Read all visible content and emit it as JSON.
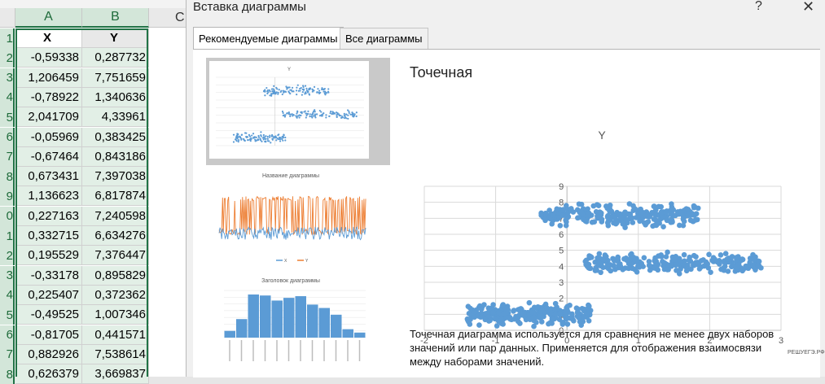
{
  "sheet": {
    "columns": [
      "A",
      "B",
      "C"
    ],
    "row_numbers": [
      "1",
      "2",
      "3",
      "4",
      "5",
      "6",
      "7",
      "8",
      "9",
      "0",
      "1",
      "2",
      "3",
      "4",
      "5",
      "6",
      "7",
      "8"
    ],
    "headers": [
      "X",
      "Y"
    ],
    "rows": [
      [
        "-0,59338",
        "0,287732"
      ],
      [
        "1,206459",
        "7,751659"
      ],
      [
        "-0,78922",
        "1,340636"
      ],
      [
        "2,041709",
        "4,33961"
      ],
      [
        "-0,05969",
        "0,383425"
      ],
      [
        "-0,67464",
        "0,843186"
      ],
      [
        "0,673431",
        "7,397038"
      ],
      [
        "1,136623",
        "6,817874"
      ],
      [
        "0,227163",
        "7,240598"
      ],
      [
        "0,332715",
        "6,634276"
      ],
      [
        "0,195529",
        "7,376447"
      ],
      [
        "-0,33178",
        "0,895829"
      ],
      [
        "0,225407",
        "0,372362"
      ],
      [
        "-0,49525",
        "1,007346"
      ],
      [
        "-0,81705",
        "0,441571"
      ],
      [
        "0,882926",
        "7,538614"
      ],
      [
        "0,626379",
        "3,669837"
      ]
    ]
  },
  "dialog": {
    "title": "Вставка диаграммы",
    "help_label": "?",
    "close_label": "✕",
    "tabs": [
      "Рекомендуемые диаграммы",
      "Все диаграммы"
    ],
    "thumbnails": {
      "scatter_title": "Y",
      "line_title": "Название диаграммы",
      "line_legend": [
        "X",
        "Y"
      ],
      "hist_title": "Заголовок диаграммы"
    },
    "preview": {
      "heading": "Точечная",
      "description": "Точечная диаграмма используется для сравнения не менее двух наборов значений или пар данных. Применяется для отображения взаимосвязи между наборами значений."
    }
  },
  "watermark": "РЕШУЕГЭ.РФ",
  "chart_data": [
    {
      "type": "scatter",
      "title": "Y",
      "xlim": [
        -2,
        3
      ],
      "ylim": [
        0,
        9
      ],
      "x_ticks": [
        "-2",
        "-1",
        "0",
        "1",
        "2",
        "3"
      ],
      "y_ticks": [
        "0",
        "1",
        "2",
        "3",
        "4",
        "5",
        "6",
        "7",
        "8",
        "9"
      ],
      "grid": true,
      "color": "#5b9bd5",
      "clusters": [
        {
          "x_range": [
            -1.4,
            0.35
          ],
          "y_range": [
            0.1,
            1.9
          ],
          "count": 260
        },
        {
          "x_range": [
            -0.4,
            1.85
          ],
          "y_range": [
            6.3,
            8.1
          ],
          "count": 260
        },
        {
          "x_range": [
            0.25,
            2.75
          ],
          "y_range": [
            3.3,
            5.0
          ],
          "count": 260
        }
      ]
    },
    {
      "type": "line",
      "title": "Название диаграммы",
      "series": [
        {
          "name": "X",
          "color": "#5b9bd5"
        },
        {
          "name": "Y",
          "color": "#ed7d31"
        }
      ],
      "ylim": [
        -2,
        10
      ]
    },
    {
      "type": "bar",
      "title": "Заголовок диаграммы",
      "values": [
        20,
        55,
        128,
        125,
        110,
        118,
        123,
        98,
        88,
        68,
        25,
        15
      ],
      "ylim": [
        0,
        140
      ],
      "color": "#5b9bd5"
    }
  ]
}
